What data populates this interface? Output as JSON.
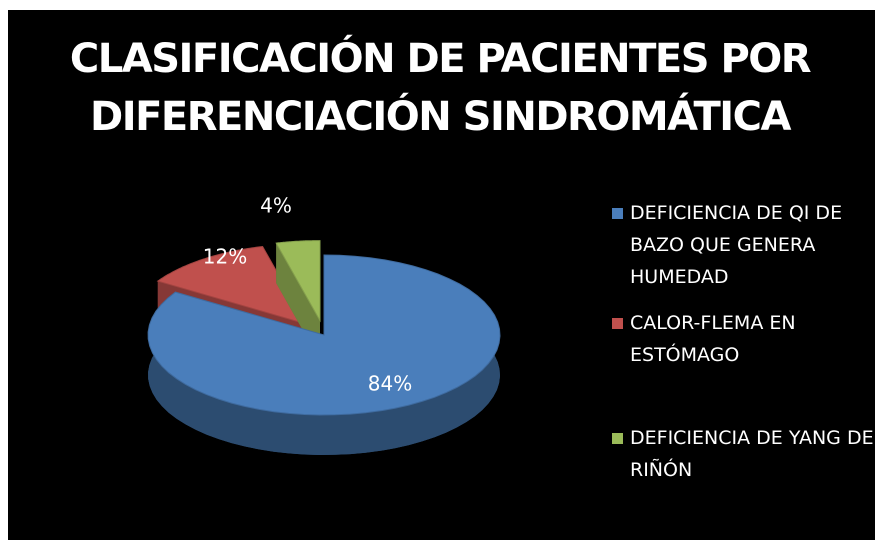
{
  "chart_data": {
    "type": "pie",
    "title": "CLASIFICACIÓN DE PACIENTES POR DIFERENCIACIÓN SINDROMÁTICA",
    "categories": [
      "DEFICIENCIA DE QI DE BAZO QUE GENERA HUMEDAD",
      "CALOR-FLEMA EN ESTÓMAGO",
      "DEFICIENCIA DE YANG DE RIÑÓN"
    ],
    "values": [
      84,
      12,
      4
    ],
    "value_labels": [
      "84%",
      "12%",
      "4%"
    ],
    "colors": [
      "#4a7ebb",
      "#c0504d",
      "#9bbb59"
    ],
    "legend": "right"
  }
}
